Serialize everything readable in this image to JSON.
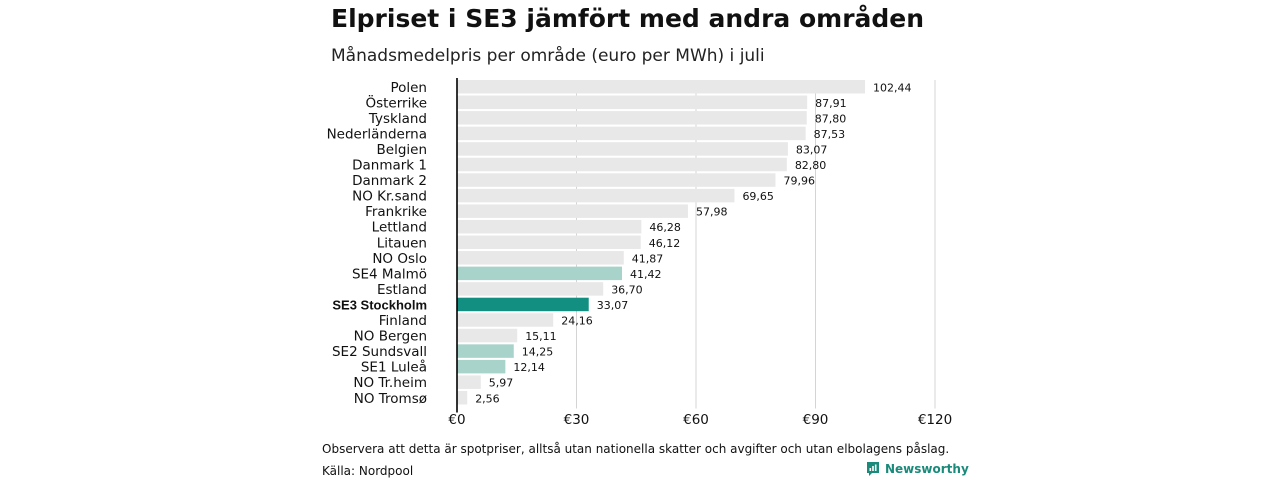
{
  "chart_data": {
    "type": "bar",
    "orientation": "horizontal",
    "title": "Elpriset i SE3 jämfört med andra områden",
    "subtitle": "Månadsmedelpris per område (euro per MWh) i juli",
    "categories": [
      "Polen",
      "Österrike",
      "Tyskland",
      "Nederländerna",
      "Belgien",
      "Danmark  1",
      "Danmark  2",
      "NO Kr.sand",
      "Frankrike",
      "Lettland",
      "Litauen",
      "NO Oslo",
      "SE4  Malmö",
      "Estland",
      "SE3 Stockholm",
      "Finland",
      "NO Bergen",
      "SE2  Sundsvall",
      "SE1  Luleå",
      "NO Tr.heim",
      "NO Tromsø"
    ],
    "values": [
      102.44,
      87.91,
      87.8,
      87.53,
      83.07,
      82.8,
      79.96,
      69.65,
      57.98,
      46.28,
      46.12,
      41.87,
      41.42,
      36.7,
      33.07,
      24.16,
      15.11,
      14.25,
      12.14,
      5.97,
      2.56
    ],
    "value_labels": [
      "102,44",
      "87,91",
      "87,80",
      "87,53",
      "83,07",
      "82,80",
      "79,96",
      "69,65",
      "57,98",
      "46,28",
      "46,12",
      "41,87",
      "41,42",
      "36,70",
      "33,07",
      "24,16",
      "15,11",
      "14,25",
      "12,14",
      "5,97",
      "2,56"
    ],
    "bar_colors": [
      "#e8e8e8",
      "#e8e8e8",
      "#e8e8e8",
      "#e8e8e8",
      "#e8e8e8",
      "#e8e8e8",
      "#e8e8e8",
      "#e8e8e8",
      "#e8e8e8",
      "#e8e8e8",
      "#e8e8e8",
      "#e8e8e8",
      "#a7d3ca",
      "#e8e8e8",
      "#138f82",
      "#e8e8e8",
      "#e8e8e8",
      "#a7d3ca",
      "#a7d3ca",
      "#e8e8e8",
      "#e8e8e8"
    ],
    "highlight_category": "SE3 Stockholm",
    "xlim": [
      0,
      120
    ],
    "x_ticks": [
      0,
      30,
      60,
      90,
      120
    ],
    "x_tick_labels": [
      "€0",
      "€30",
      "€60",
      "€90",
      "€120"
    ],
    "grid": true,
    "legend": "none"
  },
  "footer": {
    "note": "Observera att detta är spotpriser, alltså utan nationella skatter och avgifter och utan elbolagens påslag.",
    "source": "Källa: Nordpool",
    "brand": "Newsworthy",
    "brand_color": "#1a8a7a"
  }
}
